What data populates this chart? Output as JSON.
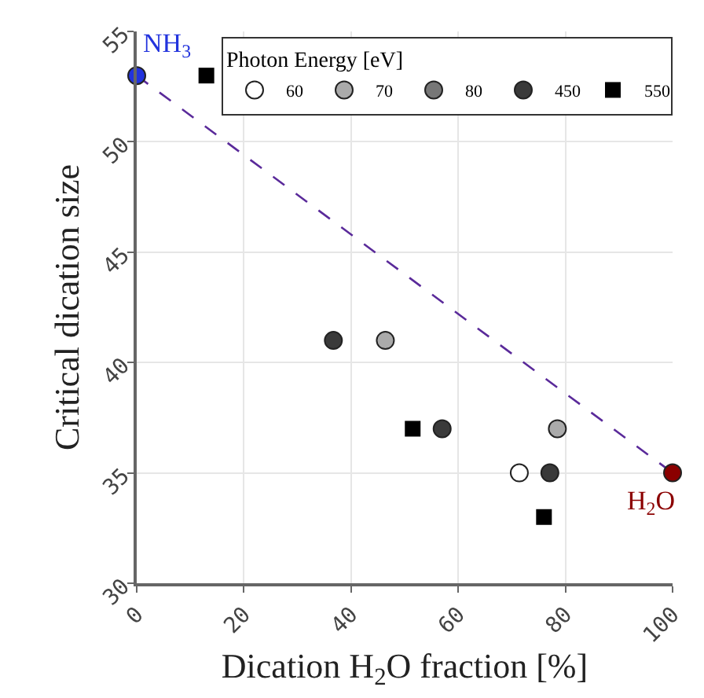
{
  "chart_data": {
    "type": "scatter",
    "xlabel": "Dication H$_{2}$O fraction [%]",
    "ylabel": "Critical dication size",
    "legend_title": "Photon Energy [eV]",
    "xlim": [
      0,
      100
    ],
    "xticks": [
      0,
      20,
      40,
      60,
      80,
      100
    ],
    "ylim": [
      30,
      55
    ],
    "yticks": [
      30,
      35,
      40,
      45,
      50,
      55
    ],
    "grid": true,
    "legend": "top right",
    "series": [
      {
        "type": "line",
        "line_style": "dashed",
        "marker": "none",
        "color": "#5a2a9a",
        "x": [
          0,
          100
        ],
        "values": [
          53,
          35
        ]
      },
      {
        "name": "60",
        "color": "#ffffff",
        "marker": "circle",
        "x": [
          71.4
        ],
        "values": [
          35
        ]
      },
      {
        "name": "70",
        "color": "#aaaaaa",
        "marker": "circle",
        "x": [
          46.4,
          78.5
        ],
        "values": [
          41,
          37
        ]
      },
      {
        "name": "80",
        "color": "#777777",
        "marker": "circle"
      },
      {
        "name": "450",
        "color": "#3a3a3a",
        "marker": "circle",
        "x": [
          36.7,
          57,
          77.1
        ],
        "values": [
          41,
          37,
          35
        ]
      },
      {
        "name": "550",
        "color": "#000000",
        "marker": "square",
        "x": [
          13,
          51.5,
          76
        ],
        "values": [
          53,
          37,
          33
        ]
      },
      {
        "color": "#2233dd",
        "marker": "circle",
        "x": [
          0
        ],
        "values": [
          53
        ]
      },
      {
        "color": "#8b0000",
        "marker": "circle",
        "x": [
          100
        ],
        "values": [
          35
        ]
      }
    ],
    "annotations": [
      {
        "text": "NH$_{3}$",
        "x": 0,
        "y": 53
      },
      {
        "text": "H$_{2}$O",
        "x": 100,
        "y": 35
      }
    ]
  }
}
